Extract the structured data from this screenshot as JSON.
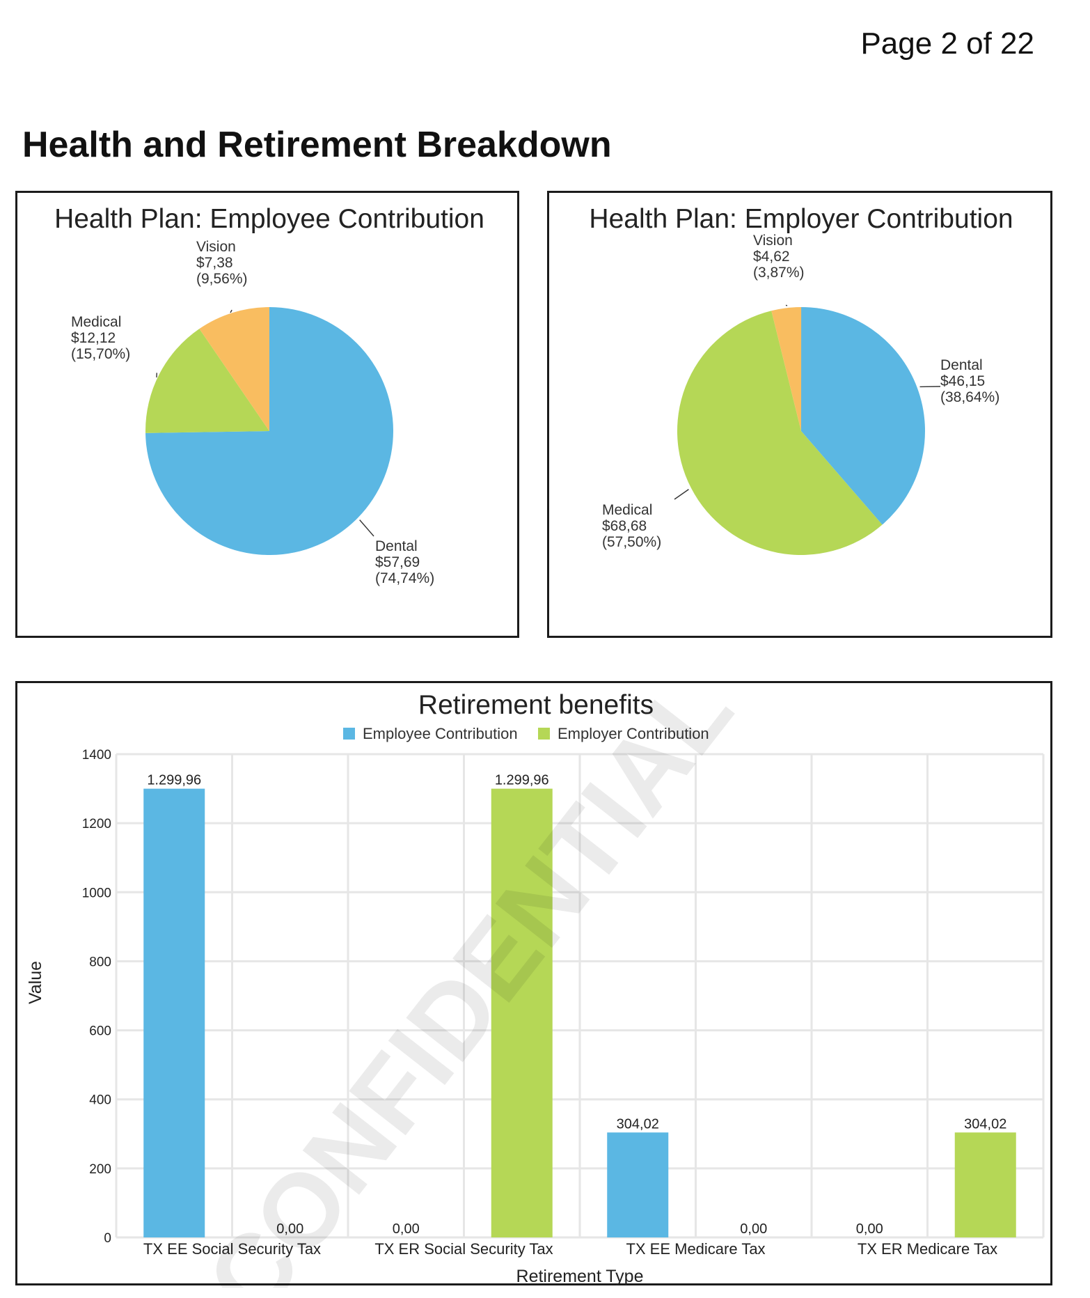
{
  "page": {
    "number_text": "Page 2 of 22"
  },
  "document": {
    "title": "Health and Retirement Breakdown"
  },
  "watermark": {
    "text": "CONFIDENTIAL"
  },
  "chart_data": [
    {
      "type": "pie",
      "title": "Health Plan: Employee Contribution",
      "slices": [
        {
          "name": "Dental",
          "amount": "$57,69",
          "percent": "(74,74%)",
          "value": 57.69,
          "pct": 74.74,
          "color": "#5bb7e3"
        },
        {
          "name": "Medical",
          "amount": "$12,12",
          "percent": "(15,70%)",
          "value": 12.12,
          "pct": 15.7,
          "color": "#b5d756"
        },
        {
          "name": "Vision",
          "amount": "$7,38",
          "percent": "(9,56%)",
          "value": 7.38,
          "pct": 9.56,
          "color": "#f9bd60"
        }
      ]
    },
    {
      "type": "pie",
      "title": "Health Plan: Employer Contribution",
      "slices": [
        {
          "name": "Dental",
          "amount": "$46,15",
          "percent": "(38,64%)",
          "value": 46.15,
          "pct": 38.64,
          "color": "#5bb7e3"
        },
        {
          "name": "Medical",
          "amount": "$68,68",
          "percent": "(57,50%)",
          "value": 68.68,
          "pct": 57.5,
          "color": "#b5d756"
        },
        {
          "name": "Vision",
          "amount": "$4,62",
          "percent": "(3,87%)",
          "value": 4.62,
          "pct": 3.87,
          "color": "#f9bd60"
        }
      ]
    },
    {
      "type": "bar",
      "title": "Retirement benefits",
      "xlabel": "Retirement Type",
      "ylabel": "Value",
      "ylim": [
        0,
        1400
      ],
      "yticks": [
        "0",
        "200",
        "400",
        "600",
        "800",
        "1000",
        "1200",
        "1400"
      ],
      "grid": true,
      "legend_position": "top",
      "categories": [
        "TX EE Social Security Tax",
        "TX ER Social Security Tax",
        "TX EE Medicare Tax",
        "TX ER Medicare Tax"
      ],
      "series": [
        {
          "name": "Employee Contribution",
          "color": "#5bb7e3",
          "values": [
            1299.96,
            0,
            304.02,
            0
          ],
          "labels": [
            "1.299,96",
            "0,00",
            "304,02",
            "0,00"
          ]
        },
        {
          "name": "Employer Contribution",
          "color": "#b5d756",
          "values": [
            0,
            1299.96,
            0,
            304.02
          ],
          "labels": [
            "0,00",
            "1.299,96",
            "0,00",
            "304,02"
          ]
        }
      ]
    }
  ]
}
